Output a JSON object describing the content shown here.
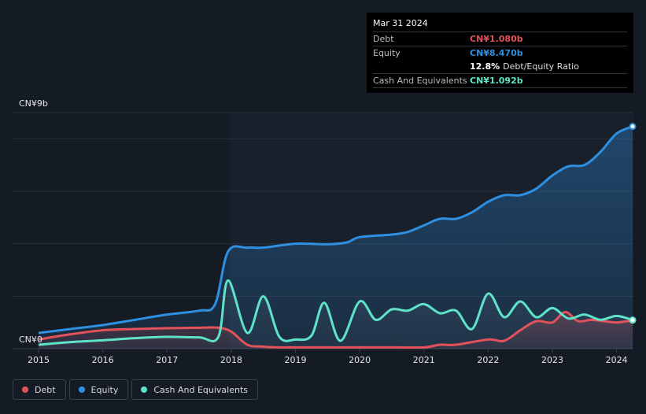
{
  "colors": {
    "debt": "#e2525a",
    "equity": "#2f8fe0",
    "cash": "#5fe3c8",
    "background": "#151b24"
  },
  "tooltip": {
    "date": "Mar 31 2024",
    "debt_label": "Debt",
    "debt_value": "CN¥1.080b",
    "equity_label": "Equity",
    "equity_value": "CN¥8.470b",
    "ratio_value": "12.8%",
    "ratio_label": "Debt/Equity Ratio",
    "cash_label": "Cash And Equivalents",
    "cash_value": "CN¥1.092b"
  },
  "legend": [
    {
      "label": "Debt",
      "color": "#e2525a"
    },
    {
      "label": "Equity",
      "color": "#2f8fe0"
    },
    {
      "label": "Cash And Equivalents",
      "color": "#5fe3c8"
    }
  ],
  "chart_data": {
    "type": "area",
    "y_top_label": "CN¥9b",
    "y_bottom_label": "CN¥0",
    "ylim": [
      0,
      9
    ],
    "xlim": [
      2015,
      2024.25
    ],
    "x_tick_labels": [
      "2015",
      "2016",
      "2017",
      "2018",
      "2019",
      "2020",
      "2021",
      "2022",
      "2023",
      "2024"
    ],
    "x_ticks": [
      2015,
      2016,
      2017,
      2018,
      2019,
      2020,
      2021,
      2022,
      2023,
      2024
    ],
    "grid": true,
    "legend_position": "bottom-left",
    "series": [
      {
        "name": "Equity",
        "key": "equity",
        "points": [
          [
            2015,
            0.6
          ],
          [
            2015.5,
            0.75
          ],
          [
            2016,
            0.9
          ],
          [
            2016.5,
            1.1
          ],
          [
            2017,
            1.3
          ],
          [
            2017.5,
            1.45
          ],
          [
            2017.75,
            1.7
          ],
          [
            2017.95,
            3.7
          ],
          [
            2018.25,
            3.85
          ],
          [
            2018.5,
            3.85
          ],
          [
            2019,
            4.0
          ],
          [
            2019.5,
            3.98
          ],
          [
            2019.8,
            4.05
          ],
          [
            2020,
            4.25
          ],
          [
            2020.5,
            4.35
          ],
          [
            2020.75,
            4.45
          ],
          [
            2021,
            4.7
          ],
          [
            2021.25,
            4.95
          ],
          [
            2021.5,
            4.95
          ],
          [
            2021.75,
            5.2
          ],
          [
            2022,
            5.6
          ],
          [
            2022.25,
            5.85
          ],
          [
            2022.5,
            5.85
          ],
          [
            2022.75,
            6.1
          ],
          [
            2023,
            6.6
          ],
          [
            2023.25,
            6.95
          ],
          [
            2023.5,
            7.0
          ],
          [
            2023.75,
            7.5
          ],
          [
            2024,
            8.2
          ],
          [
            2024.25,
            8.47
          ]
        ]
      },
      {
        "name": "Debt",
        "key": "debt",
        "points": [
          [
            2015,
            0.35
          ],
          [
            2015.5,
            0.55
          ],
          [
            2016,
            0.7
          ],
          [
            2016.5,
            0.75
          ],
          [
            2017,
            0.78
          ],
          [
            2017.5,
            0.8
          ],
          [
            2017.8,
            0.8
          ],
          [
            2018,
            0.65
          ],
          [
            2018.25,
            0.15
          ],
          [
            2018.5,
            0.08
          ],
          [
            2018.75,
            0.05
          ],
          [
            2019,
            0.05
          ],
          [
            2019.5,
            0.05
          ],
          [
            2020,
            0.05
          ],
          [
            2020.5,
            0.05
          ],
          [
            2021,
            0.05
          ],
          [
            2021.25,
            0.15
          ],
          [
            2021.5,
            0.15
          ],
          [
            2022,
            0.35
          ],
          [
            2022.25,
            0.3
          ],
          [
            2022.5,
            0.7
          ],
          [
            2022.75,
            1.05
          ],
          [
            2023,
            1.0
          ],
          [
            2023.2,
            1.4
          ],
          [
            2023.4,
            1.05
          ],
          [
            2023.6,
            1.1
          ],
          [
            2023.8,
            1.05
          ],
          [
            2024,
            1.0
          ],
          [
            2024.25,
            1.08
          ]
        ]
      },
      {
        "name": "Cash And Equivalents",
        "key": "cash",
        "points": [
          [
            2015,
            0.15
          ],
          [
            2015.5,
            0.25
          ],
          [
            2016,
            0.32
          ],
          [
            2016.5,
            0.4
          ],
          [
            2017,
            0.45
          ],
          [
            2017.5,
            0.43
          ],
          [
            2017.8,
            0.45
          ],
          [
            2017.95,
            2.6
          ],
          [
            2018.25,
            0.6
          ],
          [
            2018.5,
            2.0
          ],
          [
            2018.75,
            0.45
          ],
          [
            2019,
            0.35
          ],
          [
            2019.25,
            0.5
          ],
          [
            2019.45,
            1.75
          ],
          [
            2019.7,
            0.3
          ],
          [
            2020,
            1.8
          ],
          [
            2020.25,
            1.1
          ],
          [
            2020.5,
            1.5
          ],
          [
            2020.75,
            1.45
          ],
          [
            2021,
            1.7
          ],
          [
            2021.25,
            1.35
          ],
          [
            2021.5,
            1.45
          ],
          [
            2021.75,
            0.75
          ],
          [
            2022,
            2.1
          ],
          [
            2022.25,
            1.2
          ],
          [
            2022.5,
            1.8
          ],
          [
            2022.75,
            1.2
          ],
          [
            2023,
            1.55
          ],
          [
            2023.25,
            1.15
          ],
          [
            2023.5,
            1.3
          ],
          [
            2023.75,
            1.1
          ],
          [
            2024,
            1.25
          ],
          [
            2024.25,
            1.09
          ]
        ]
      }
    ]
  }
}
